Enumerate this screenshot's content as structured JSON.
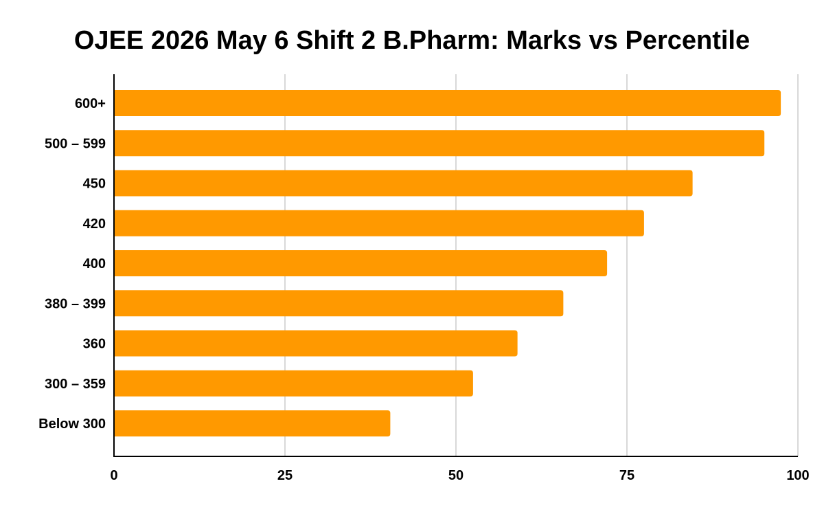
{
  "chart_data": {
    "type": "bar",
    "orientation": "horizontal",
    "title": "OJEE 2026 May 6 Shift 2 B.Pharm: Marks vs Percentile",
    "xlabel": "",
    "ylabel": "",
    "categories": [
      "600+",
      "500 – 599",
      "450",
      "420",
      "400",
      "380 – 399",
      "360",
      "300 – 359",
      "Below 300"
    ],
    "values": [
      97.5,
      95.1,
      84.6,
      77.5,
      72.1,
      65.7,
      59.0,
      52.5,
      40.4
    ],
    "xlim": [
      0,
      100
    ],
    "xticks": [
      "0",
      "25",
      "50",
      "75",
      "100"
    ],
    "grid": true,
    "legend": "none",
    "bar_color": "#ff9900",
    "grid_color": "#cccccc",
    "axis_color": "#000000"
  }
}
